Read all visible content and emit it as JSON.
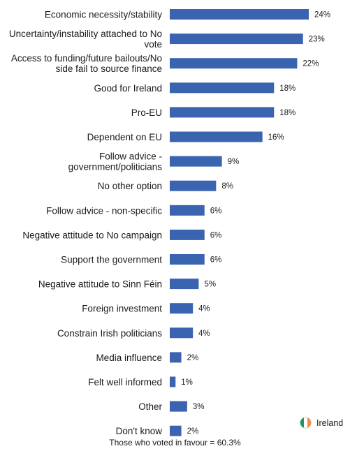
{
  "chart_data": {
    "type": "bar",
    "orientation": "horizontal",
    "categories": [
      [
        "Economic necessity/stability"
      ],
      [
        "Uncertainty/instability attached to No",
        "vote"
      ],
      [
        "Access to funding/future bailouts/No",
        "side fail to source finance"
      ],
      [
        "Good for Ireland"
      ],
      [
        "Pro-EU"
      ],
      [
        "Dependent on EU"
      ],
      [
        "Follow advice -",
        "government/politicians"
      ],
      [
        "No other option"
      ],
      [
        "Follow advice - non-specific"
      ],
      [
        "Negative attitude to No campaign"
      ],
      [
        "Support the government"
      ],
      [
        "Negative attitude to Sinn Féin"
      ],
      [
        "Foreign investment"
      ],
      [
        "Constrain Irish politicians"
      ],
      [
        "Media influence"
      ],
      [
        "Felt well informed"
      ],
      [
        "Other"
      ],
      [
        "Don't know"
      ]
    ],
    "values": [
      24,
      23,
      22,
      18,
      18,
      16,
      9,
      8,
      6,
      6,
      6,
      5,
      4,
      4,
      2,
      1,
      3,
      2
    ],
    "value_suffix": "%",
    "bar_color": "#3a63b0",
    "xlim": [
      0,
      24
    ],
    "legend": {
      "label": "Ireland",
      "placement": "bottom-right"
    },
    "flag_colors": [
      "#169b62",
      "#ffffff",
      "#ff883e"
    ],
    "footnote": "Those who voted in favour = 60.3%"
  }
}
